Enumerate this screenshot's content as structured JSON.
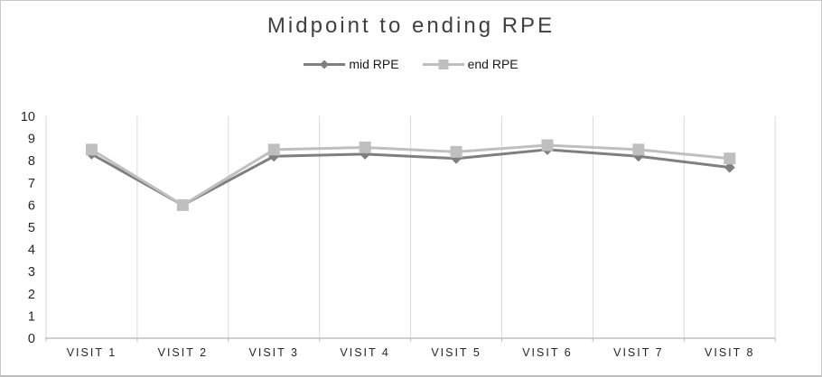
{
  "chart_data": {
    "type": "line",
    "title": "Midpoint to ending RPE",
    "categories": [
      "VISIT 1",
      "VISIT 2",
      "VISIT 3",
      "VISIT 4",
      "VISIT 5",
      "VISIT 6",
      "VISIT 7",
      "VISIT 8"
    ],
    "series": [
      {
        "name": "mid RPE",
        "marker": "diamond",
        "color": "#7f7f7f",
        "values": [
          8.3,
          6.0,
          8.2,
          8.3,
          8.1,
          8.5,
          8.2,
          7.7
        ]
      },
      {
        "name": "end RPE",
        "marker": "square",
        "color": "#bfbfbf",
        "values": [
          8.5,
          6.0,
          8.5,
          8.6,
          8.4,
          8.7,
          8.5,
          8.1
        ]
      }
    ],
    "ylim": [
      0,
      10
    ],
    "yticks": [
      0,
      1,
      2,
      3,
      4,
      5,
      6,
      7,
      8,
      9,
      10
    ],
    "ytick_step": 1,
    "xlabel": "",
    "ylabel": "",
    "grid": "vertical-only",
    "legend_position": "top",
    "colors": {
      "grid": "#d9d9d9",
      "axis": "#bfbfbf",
      "tick_text": "#262626",
      "title_text": "#404040"
    }
  }
}
